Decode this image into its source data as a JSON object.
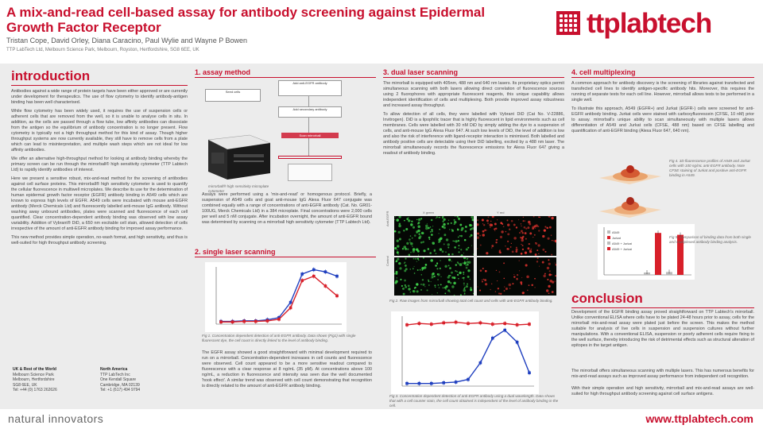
{
  "header": {
    "title": "A mix-and-read cell-based assay for antibody screening against Epidermal Growth Factor Receptor",
    "authors": "Tristan Cope, David Orley, Diana Caracino, Paul Wylie and Wayne P Bowen",
    "affiliation": "TTP LabTech Ltd, Melbourn Science Park, Melbourn, Royston, Hertfordshire, SG8 6EE, UK",
    "logo_text": "ttplabtech"
  },
  "colors": {
    "accent": "#c8102e",
    "band": "#ececec"
  },
  "intro": {
    "heading": "introduction",
    "paragraphs": [
      "Antibodies against a wide range of protein targets have been either approved or are currently under development for therapeutics. The use of flow cytometry to identify antibody-antigen binding has been well characterised.",
      "While flow cytometry has been widely used, it requires the use of suspension cells or adherent cells that are removed from the well, so it is unable to analyse cells in situ. In addition, as the cells are passed through a flow tube, low affinity antibodies can dissociate from the antigen so the equilibrium of antibody concentration is no longer present. Flow cytometry is typically not a high throughput method for this kind of assay. Though higher throughput systems are now currently available, they still have to remove cells from a plate which can lead to misinterpretation, and multiple wash steps which are not ideal for low affinity antibodies.",
      "We offer an alternative high-throughput method for looking at antibody binding whereby the primary screen can be run through the mirrorball® high sensitivity cytometer (TTP Labtech Ltd) to rapidly identify antibodies of interest.",
      "Here we present a sensitive robust, mix-and-read method for the screening of antibodies against cell surface proteins. This mirrorball® high sensitivity cytometer is used to quantify the cellular fluorescence in multiwell microplates. We describe its use for the determination of human epidermal growth factor receptor (EGFR) antibody binding in A549 cells which are known to express high levels of EGFR. A549 cells were incubated with mouse anti-EGFR antibody (Merck Chemicals Ltd) and fluorescently labelled anti-mouse IgG antibody. Without washing away unbound antibodies, plates were scanned and fluorescence of each cell quantified. Clear concentration-dependent antibody binding was observed with low assay variability. Addition of Vybrant® DiD, a 650 nm excitable cell stain, allowed detection of cells irrespective of the amount of anti-EGFR antibody binding for improved assay performance.",
      "This new method provides simple operation, no-wash format, and high sensitivity, and thus is well-suited for high throughput antibody screening."
    ]
  },
  "contacts": [
    {
      "region": "UK & Rest of the World",
      "lines": [
        "Melbourn Science Park",
        "Melbourn, Hertfordshire",
        "SG8 6EE, UK",
        "Tel: +44 (0) 1763 262626"
      ]
    },
    {
      "region": "North America",
      "lines": [
        "TTP LabTech Inc",
        "One Kendall Square",
        "Cambridge, MA 02139",
        "Tel: +1 (617) 494 9794"
      ]
    }
  ],
  "assay": {
    "heading": "1. assay method",
    "flow_steps": [
      "Seed cells",
      "Add anti-EGFR antibody",
      "Add secondary antibody",
      "Scan mirrorball"
    ],
    "instrument_caption": "mirrorball® high sensitivity microplate cytometer",
    "paragraph": "Assays were performed using a 'mix-and-read' or homogenous protocol. Briefly, a suspension of A549 cells and goat anti-mouse IgG Alexa Fluor 647 conjugate was combined equally with a range of concentrations of anti-EGFR antibody (Cat. No. GR01-100UG, Merck Chemicals Ltd) in a 384 microplate. Final concentrations were 2,000 cells per well and 5 nM conjugate. After incubation overnight, the amount of anti-EGFR bound was determined by scanning on a mirrorball high sensitivity cytometer (TTP Labtech Ltd)."
  },
  "single": {
    "heading": "2. single laser scanning",
    "caption": "Fig 1. Concentration dependent detection of anti-EGFR antibody. Data shown (Fig1) with single fluorescent dye, the cell count is directly linked to the level of antibody binding.",
    "paragraph": "The EGFR assay showed a good straightforward with minimal development required to run on a mirrorball. Concentration-dependent increases in cell counts and fluorescence were observed. Cell count appeared to be a more sensitive readout compared to fluorescence with a clear response at 8 ng/mL (35 pM). At concentrations above 100 ng/mL, a reduction in fluorescence and intensity was seen due the well documented 'hook effect'. A similar trend was observed with cell count demonstrating that recognition is directly related to the amount of anti-EGFR antibody binding."
  },
  "dual": {
    "heading": "3. dual laser scanning",
    "paragraphs": [
      "The mirrorball is equipped with 405nm, 488 nm and 640 nm lasers. Its proprietary optics permit simultaneous scanning with both lasers allowing direct correlation of fluorescence sources using 2 fluorophores with appropriate fluorescent reagents, this unique capability allows independent identification of cells and multiplexing. Both provide improved assay robustness and increased assay throughput.",
      "To allow detection of all cells, they were labelled with Vybrant DiD (Cat No. V-22886, Invitrogen). DiD is a lipophilic tracer that is highly fluorescent in lipid environments such as cell membranes. Cells were labelled with 30 nM DiD by simply adding the dye to a suspension of cells, and anti-mouse IgG Alexa Fluor 647. At such low levels of DiD, the level of addition is low and also the risk of interference with ligand-receptor interaction is minimised. Both labelled and antibody positive cells are detectable using their DiD labelling, excited by a 488 nm laser. The mirrorball simultaneously records the fluorescence emissions for Alexa Fluor 647 giving a readout of antibody binding."
    ],
    "micro_col_labels": [
      "X green",
      "Y red"
    ],
    "micro_row_labels": [
      "Anti-EGFR",
      "Control"
    ],
    "fig2_caption": "Fig 2. Raw images from mirrorball showing total cell count and cells with anti-EGFR antibody binding.",
    "fig3_caption": "Fig 3. Concentration dependent detection of anti-EGFR antibody using a dual wavelength. Data shows that with a cell counter stain, the cell count obtained is independent of the level of antibody binding in the cell."
  },
  "multiplex": {
    "heading": "4. cell multiplexing",
    "paragraphs": [
      "A common approach for antibody discovery is the screening of libraries against transfected and transfected cell lines to identify antigen-specific antibody hits. Moreover, this requires the running of separate tests for each cell line. However, mirrorball allows tests to be performed in a single well.",
      "To illustrate this approach, A549 (EGFR+) and Jurkat (EGFR-) cells were screened for anti-EGFR antibody binding. Jurkat cells were stained with carboxyfluorescein (CFSE, 10 nM) prior to assay. mirrorball's unique ability to scan simultaneously with multiple lasers allows differentiation of A549 and Jurkat cells (CFSE, 488 nm) based on CFSE labelling and quantification of anti-EGFR binding (Alexa Fluor 647, 640 nm)."
    ],
    "fig4_caption": "Fig 4. 3D fluorescence profiles of A549 and Jurkat cells with 100 ng/mL anti-EGFR antibody. Note CFSE staining of Jurkat and positive anti-EGFR binding in A549.",
    "fig5_caption": "Fig 5. Comparison of binding data from both single and multiplexed antibody binding analysis.",
    "bar_legend": [
      "A549",
      "Jurkat",
      "A549 + Jurkat",
      "A549 + Jurkat"
    ]
  },
  "conclusion": {
    "heading": "conclusion",
    "paragraphs": [
      "Development of the EGFR binding assay proved straightforward on TTP Labtech's mirrorball. Unlike conventional ELISA where cells have to be plated 24-48 hours prior to assay, cells for the mirrorball mix-and-read assay were plated just before the screen. This makes the method suitable for analysis of live cells in suspension and suspension cultures without further manipulations. With a conventional ELISA, suspension or poorly adherent cells require fixing to the well surface, thereby introducing the risk of detrimental effects such as structural alteration of epitopes in the target antigen.",
      "The mirrorball offers simultaneous scanning with multiple lasers. This has numerous benefits for mix-and-read assays such as improved assay performance from independent cell recognition.",
      "With their simple operation and high sensitivity, mirrorball and mix-and-read assays are well-suited for high throughput antibody screening against cell surface antigens."
    ]
  },
  "footer": {
    "tagline": "natural innovators",
    "url_prefix": "www.",
    "url_brand": "ttplabtech",
    "url_suffix": ".com"
  },
  "chart_data": [
    {
      "type": "line",
      "title": "",
      "series": [
        {
          "values": [
            5,
            5,
            6,
            6,
            8,
            12,
            40,
            92,
            100,
            96,
            88
          ]
        },
        {
          "values": [
            4,
            4,
            5,
            5,
            6,
            9,
            30,
            80,
            88,
            70,
            52
          ]
        }
      ]
    },
    {
      "type": "line",
      "title": "",
      "series": [
        {
          "values": [
            92,
            94,
            93,
            95,
            96,
            94,
            95,
            93,
            94,
            92,
            93
          ]
        },
        {
          "values": [
            4,
            4,
            4,
            5,
            6,
            10,
            35,
            72,
            84,
            66,
            20
          ]
        }
      ]
    },
    {
      "type": "bar",
      "categories": [
        "A549",
        "Jurkat",
        "A549 + Jurkat",
        "A549 + Jurkat"
      ],
      "values": [
        5,
        88,
        6,
        84
      ]
    }
  ]
}
